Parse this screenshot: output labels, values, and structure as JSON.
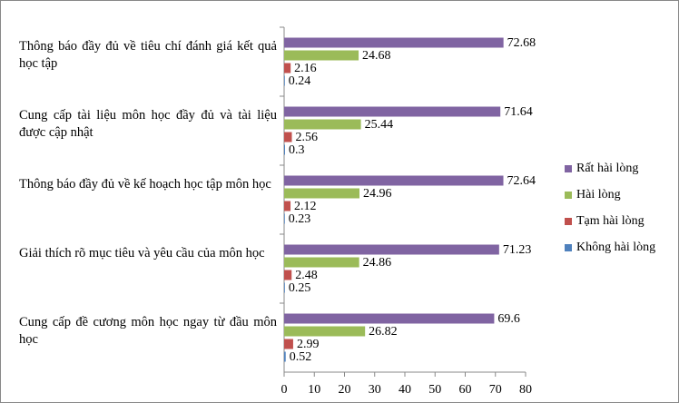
{
  "chart_data": {
    "type": "bar",
    "orientation": "horizontal",
    "categories": [
      "Thông báo đầy đủ về tiêu chí đánh giá kết quả học tập",
      "Cung cấp tài liệu môn học đầy đủ và tài liệu được cập nhật",
      "Thông báo đầy đủ về kế hoạch học tập môn học",
      "Giải thích rõ mục tiêu và yêu cầu của môn học",
      "Cung cấp đề cương môn học ngay từ đầu môn học"
    ],
    "series": [
      {
        "name": "Rất hài lòng",
        "color": "#8064a2",
        "values": [
          72.68,
          71.64,
          72.64,
          71.23,
          69.6
        ]
      },
      {
        "name": "Hài lòng",
        "color": "#9bbb59",
        "values": [
          24.68,
          25.44,
          24.96,
          24.86,
          26.82
        ]
      },
      {
        "name": "Tạm hài lòng",
        "color": "#c0504d",
        "values": [
          2.16,
          2.56,
          2.12,
          2.48,
          2.99
        ]
      },
      {
        "name": "Không hài lòng",
        "color": "#4f81bd",
        "values": [
          0.24,
          0.3,
          0.23,
          0.25,
          0.52
        ]
      }
    ],
    "xlim": [
      0,
      80
    ],
    "xticks": [
      0,
      10,
      20,
      30,
      40,
      50,
      60,
      70,
      80
    ],
    "grid": false,
    "legend": "right"
  }
}
